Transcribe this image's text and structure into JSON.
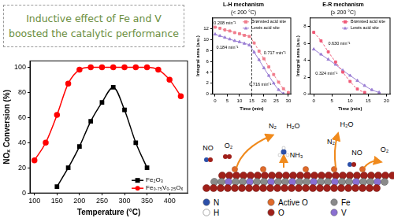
{
  "header": {
    "lines": [
      "Inductive effect of Fe and V",
      "boosted the catalytic performance"
    ]
  },
  "chart_data": [
    {
      "type": "line",
      "x_label": "Temperature (°C)",
      "y_label": "NOₓ Conversion (%)",
      "x": [
        100,
        125,
        150,
        175,
        200,
        225,
        250,
        275,
        300,
        325,
        350,
        375,
        400,
        425
      ],
      "series": [
        {
          "name": "Fe₂O₃",
          "color": "#000000",
          "marker": "square",
          "line_style": "solid",
          "values": [
            null,
            null,
            5,
            20,
            37,
            57,
            72,
            84,
            66,
            40,
            20,
            null,
            null,
            null
          ]
        },
        {
          "name": "Fe₀.₇₅V₀.₂₅Oₓ",
          "color": "#ff0000",
          "marker": "circle",
          "line_style": "solid",
          "values": [
            26,
            40,
            62,
            87,
            98,
            100,
            100,
            100,
            100,
            100,
            100,
            98,
            90,
            77
          ]
        }
      ],
      "xlim": [
        90,
        440
      ],
      "ylim": [
        0,
        105
      ],
      "xticks": [
        100,
        150,
        200,
        250,
        300,
        350,
        400
      ],
      "yticks": [
        0,
        20,
        40,
        60,
        80,
        100
      ],
      "grid": false,
      "legend": "lower right"
    },
    {
      "type": "line",
      "title": "L-H mechanism",
      "subtitle": "(< 200 °C)",
      "x_label": "Time (min)",
      "y_label": "Integral area (a.u.)",
      "x": [
        0,
        2,
        4,
        6,
        8,
        10,
        12,
        14,
        16,
        18,
        20,
        22,
        24,
        26,
        28,
        30
      ],
      "series": [
        {
          "name": "Brønsted acid site",
          "color": "#f07c8c",
          "marker": "square",
          "line_style": "dashed",
          "values": [
            12.3,
            12.1,
            11.8,
            11.6,
            11.3,
            11.1,
            10.8,
            10.6,
            9.4,
            7.9,
            6.5,
            5.0,
            3.6,
            2.2,
            1.0,
            0.3
          ]
        },
        {
          "name": "Lewis acid site",
          "color": "#9b7fd4",
          "marker": "triangle",
          "line_style": "solid",
          "values": [
            11.0,
            10.7,
            10.4,
            10.1,
            9.8,
            9.6,
            9.3,
            9.0,
            7.7,
            6.3,
            4.8,
            3.4,
            2.0,
            0.8,
            0.1,
            null
          ]
        }
      ],
      "xlim": [
        -1,
        31
      ],
      "ylim": [
        0,
        14
      ],
      "xticks": [
        0,
        5,
        10,
        15,
        20,
        25,
        30
      ],
      "yticks": [
        0,
        2,
        4,
        6,
        8,
        10,
        12
      ],
      "vline": 15,
      "annotations": [
        {
          "text": "0.208 min⁻¹",
          "x": 4,
          "y": 13.0
        },
        {
          "text": "0.184 min⁻¹",
          "x": 5,
          "y": 8.5
        },
        {
          "text": "0.717 min⁻¹",
          "x": 24.5,
          "y": 7.5
        },
        {
          "text": "0.716 min⁻¹",
          "x": 18.5,
          "y": 1.8
        }
      ],
      "grid": false,
      "legend": "upper right"
    },
    {
      "type": "line",
      "title": "E-R mechanism",
      "subtitle": "(≥ 200 °C)",
      "x_label": "Time (min)",
      "y_label": "Integral area (a.u.)",
      "x": [
        0,
        2,
        4,
        6,
        8,
        10,
        12,
        14,
        16,
        18,
        20
      ],
      "series": [
        {
          "name": "Brønsted acid site",
          "color": "#f05a78",
          "marker": "square",
          "line_style": "dashed",
          "values": [
            7.3,
            6.3,
            5.0,
            3.8,
            2.6,
            1.5,
            0.6,
            0.2,
            null,
            null,
            null
          ]
        },
        {
          "name": "Lewis acid site",
          "color": "#9b7fd4",
          "marker": "triangle",
          "line_style": "solid",
          "values": [
            5.3,
            4.7,
            4.1,
            3.5,
            2.8,
            2.2,
            1.6,
            1.0,
            0.5,
            0.2,
            null
          ]
        }
      ],
      "xlim": [
        -1,
        21
      ],
      "ylim": [
        0,
        9
      ],
      "xticks": [
        0,
        5,
        10,
        15,
        20
      ],
      "yticks": [
        0,
        2,
        4,
        6,
        8
      ],
      "annotations": [
        {
          "text": "0.630 min⁻¹",
          "x": 7,
          "y": 6.0
        },
        {
          "text": "0.324 min⁻¹",
          "x": 3.5,
          "y": 2.4
        }
      ],
      "grid": false,
      "legend": "upper right"
    }
  ],
  "diagram": {
    "labels": [
      "NO",
      "O₂",
      "N₂",
      "H₂O",
      "NH₃",
      "H₂O",
      "N₂",
      "NO",
      "O₂"
    ],
    "atoms": [
      {
        "label": "N",
        "color": "#2b4fa8"
      },
      {
        "label": "Active O",
        "color": "#e06a2a"
      },
      {
        "label": "Fe",
        "color": "#8a8a8a"
      },
      {
        "label": "H",
        "color": "#ffffff"
      },
      {
        "label": "O",
        "color": "#a0201a"
      },
      {
        "label": "V",
        "color": "#8a6fd1"
      }
    ]
  }
}
